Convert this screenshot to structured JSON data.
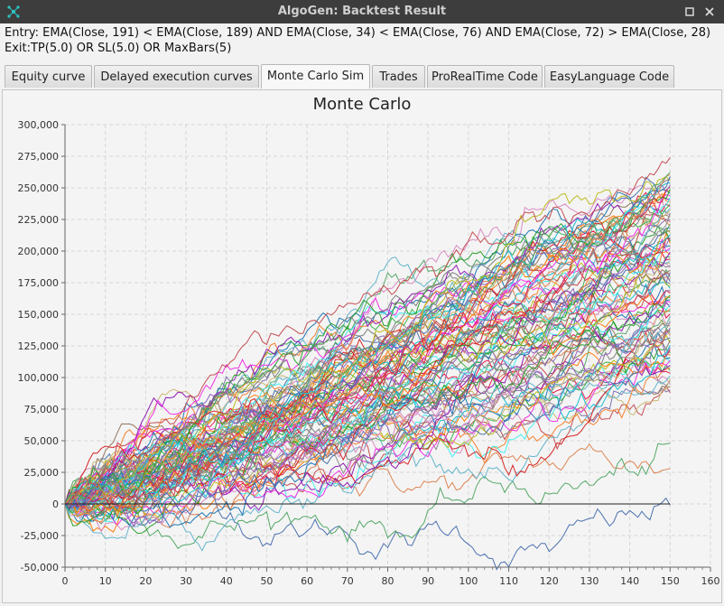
{
  "window": {
    "title": "AlgoGen: Backtest Result"
  },
  "rules": {
    "entry": "Entry: EMA(Close, 191) < EMA(Close, 189) AND EMA(Close, 34) < EMA(Close, 76) AND EMA(Close, 72) > EMA(Close, 28)",
    "exit": "Exit:TP(5.0) OR SL(5.0) OR MaxBars(5)"
  },
  "tabs": [
    {
      "label": "Equity curve"
    },
    {
      "label": "Delayed execution curves"
    },
    {
      "label": "Monte Carlo Sim",
      "active": true
    },
    {
      "label": "Trades"
    },
    {
      "label": "ProRealTime Code"
    },
    {
      "label": "EasyLanguage Code"
    }
  ],
  "chart_data": {
    "type": "line",
    "title": "Monte Carlo",
    "xlabel": "",
    "ylabel": "",
    "xlim": [
      0,
      160
    ],
    "ylim": [
      -50000,
      300000
    ],
    "x_ticks": [
      0,
      10,
      20,
      30,
      40,
      50,
      60,
      70,
      80,
      90,
      100,
      110,
      120,
      130,
      140,
      150,
      160
    ],
    "y_ticks": [
      -50000,
      -25000,
      0,
      25000,
      50000,
      75000,
      100000,
      125000,
      150000,
      175000,
      200000,
      225000,
      250000,
      275000,
      300000
    ],
    "y_tick_labels": [
      "-50,000",
      "-25,000",
      "0",
      "25,000",
      "50,000",
      "75,000",
      "100,000",
      "125,000",
      "150,000",
      "175,000",
      "200,000",
      "225,000",
      "250,000",
      "275,000",
      "300,000"
    ],
    "x_tick_labels": [
      "0",
      "10",
      "20",
      "30",
      "40",
      "50",
      "60",
      "70",
      "80",
      "90",
      "100",
      "110",
      "120",
      "130",
      "140",
      "150",
      "160"
    ],
    "grid": true,
    "zero_line": true,
    "simulation": {
      "num_paths": 100,
      "steps": 150,
      "start_value": 0,
      "final_values_range": [
        -1000,
        274000
      ],
      "median_final_value": 150000,
      "lowest_final_value": -1000,
      "highest_final_value": 274000,
      "lowest_low": -48000
    },
    "series_colors": [
      "#4c72b0",
      "#dd8452",
      "#55a868",
      "#c44e52",
      "#8172b3",
      "#937860",
      "#da8bc3",
      "#8c8c8c",
      "#ccb974",
      "#64b5cd",
      "#e6194b",
      "#3cb44b",
      "#f58231",
      "#911eb4",
      "#46f0f0",
      "#f032e6",
      "#1f77b4",
      "#ff7f0e",
      "#2ca02c",
      "#d62728",
      "#9467bd",
      "#17becf",
      "#bcbd22",
      "#7f7f7f"
    ]
  }
}
